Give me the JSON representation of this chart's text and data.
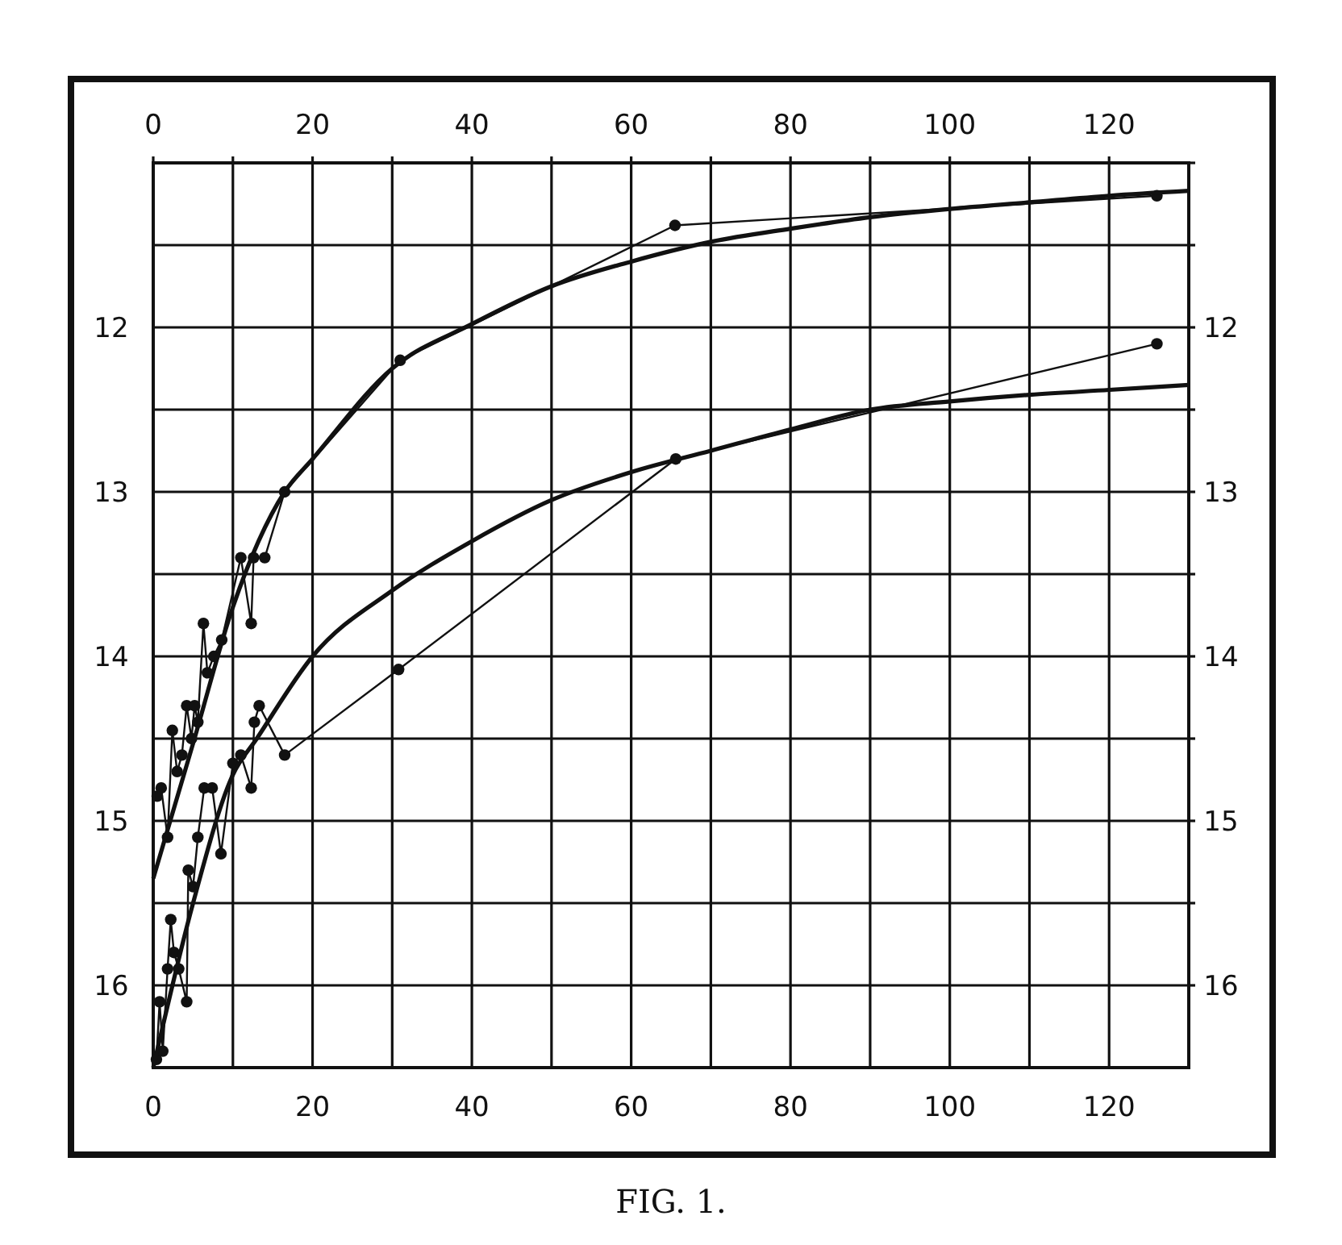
{
  "chart_data": {
    "type": "line",
    "title": "FIG. 1.",
    "xlim": [
      0,
      130
    ],
    "xticks": [
      0,
      {
        "value": 10,
        "label": null
      },
      20,
      {
        "value": 30,
        "label": null
      },
      40,
      {
        "value": 50,
        "label": null
      },
      60,
      {
        "value": 70,
        "label": null
      },
      80,
      {
        "value": 90,
        "label": null
      },
      100,
      {
        "value": 110,
        "label": null
      },
      120
    ],
    "x2lim": [
      0,
      130
    ],
    "x2ticks": [
      0,
      {
        "value": 10,
        "label": null
      },
      20,
      {
        "value": 30,
        "label": null
      },
      40,
      {
        "value": 50,
        "label": null
      },
      60,
      {
        "value": 70,
        "label": null
      },
      80,
      {
        "value": 90,
        "label": null
      },
      100,
      {
        "value": 110,
        "label": null
      },
      120
    ],
    "ylim": [
      16.5,
      11
    ],
    "yticks": [
      {
        "value": 11,
        "label": null
      },
      {
        "value": 11.5,
        "label": null
      },
      12,
      {
        "value": 12.5,
        "label": null
      },
      13,
      {
        "value": 13.5,
        "label": null
      },
      14,
      {
        "value": 14.5,
        "label": null
      },
      15,
      {
        "value": 15.5,
        "label": null
      },
      16
    ],
    "y2lim": [
      16.5,
      11
    ],
    "y2ticks": [
      {
        "value": 11,
        "label": null
      },
      {
        "value": 11.5,
        "label": null
      },
      12,
      {
        "value": 12.5,
        "label": null
      },
      13,
      {
        "value": 13.5,
        "label": null
      },
      14,
      {
        "value": 14.5,
        "label": null
      },
      15,
      {
        "value": 15.5,
        "label": null
      },
      16
    ],
    "grid": true,
    "series": [
      {
        "color": "#111111",
        "marker": "circle",
        "x": [
          0.5,
          1,
          1.8,
          2.4,
          3,
          3.6,
          4.2,
          4.8,
          5.2,
          5.6,
          6.3,
          6.8,
          7.6,
          8.6,
          11,
          12.3,
          12.6,
          14.0,
          16.5,
          31,
          65.5,
          126
        ],
        "values": [
          14.85,
          14.8,
          15.1,
          14.45,
          14.7,
          14.6,
          14.3,
          14.5,
          14.3,
          14.4,
          13.8,
          14.1,
          14.0,
          13.9,
          13.4,
          13.8,
          13.4,
          13.4,
          13.0,
          12.2,
          11.38,
          11.2
        ]
      },
      {
        "color": "#111111",
        "marker": "circle",
        "x": [
          0.4,
          0.8,
          1.2,
          1.8,
          2.2,
          2.6,
          3.2,
          4.2,
          4.4,
          5,
          5.6,
          6.4,
          7.4,
          8.5,
          10,
          11,
          12.3,
          12.7,
          13.3,
          16.5,
          30.8,
          65.6,
          126
        ],
        "values": [
          16.45,
          16.1,
          16.4,
          15.9,
          15.6,
          15.8,
          15.9,
          16.1,
          15.3,
          15.4,
          15.1,
          14.8,
          14.8,
          15.2,
          14.65,
          14.6,
          14.8,
          14.4,
          14.3,
          14.6,
          14.08,
          12.8,
          12.1
        ]
      },
      {
        "color": "#111111",
        "marker": "none",
        "x": [
          0,
          5,
          10,
          16.5,
          20,
          30,
          40,
          50,
          60,
          70,
          80,
          90,
          100,
          110,
          120,
          130
        ],
        "values": [
          15.35,
          14.53,
          13.7,
          13.0,
          12.8,
          12.25,
          11.98,
          11.75,
          11.6,
          11.48,
          11.4,
          11.33,
          11.28,
          11.24,
          11.2,
          11.17
        ]
      },
      {
        "color": "#111111",
        "marker": "none",
        "x": [
          0,
          5,
          10,
          13,
          20,
          30,
          40,
          50,
          60,
          70,
          80,
          90,
          100,
          110,
          120,
          130
        ],
        "values": [
          16.5,
          15.5,
          14.72,
          14.5,
          14.0,
          13.6,
          13.3,
          13.05,
          12.88,
          12.75,
          12.62,
          12.5,
          12.45,
          12.41,
          12.38,
          12.35
        ]
      }
    ]
  }
}
